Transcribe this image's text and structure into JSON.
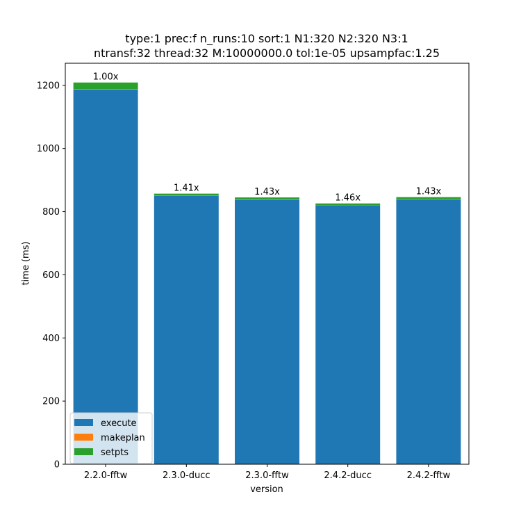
{
  "chart_data": {
    "type": "bar",
    "stacked": true,
    "title_line1": "type:1 prec:f n_runs:10 sort:1 N1:320 N2:320 N3:1",
    "title_line2": "ntransf:32 thread:32 M:10000000.0 tol:1e-05 upsampfac:1.25",
    "xlabel": "version",
    "ylabel": "time (ms)",
    "categories": [
      "2.2.0-fftw",
      "2.3.0-ducc",
      "2.3.0-fftw",
      "2.4.2-ducc",
      "2.4.2-fftw"
    ],
    "series": [
      {
        "name": "execute",
        "color": "#1f77b4",
        "values": [
          1187,
          850,
          837,
          820,
          838
        ]
      },
      {
        "name": "makeplan",
        "color": "#ff7f0e",
        "values": [
          1,
          1,
          1,
          1,
          1
        ]
      },
      {
        "name": "setpts",
        "color": "#2ca02c",
        "values": [
          21,
          6,
          7,
          5,
          7
        ]
      }
    ],
    "bar_labels": [
      "1.00x",
      "1.41x",
      "1.43x",
      "1.46x",
      "1.43x"
    ],
    "ylim": [
      0,
      1270
    ],
    "yticks": [
      0,
      200,
      400,
      600,
      800,
      1000,
      1200
    ],
    "legend_position": "lower-left",
    "grid": false
  }
}
